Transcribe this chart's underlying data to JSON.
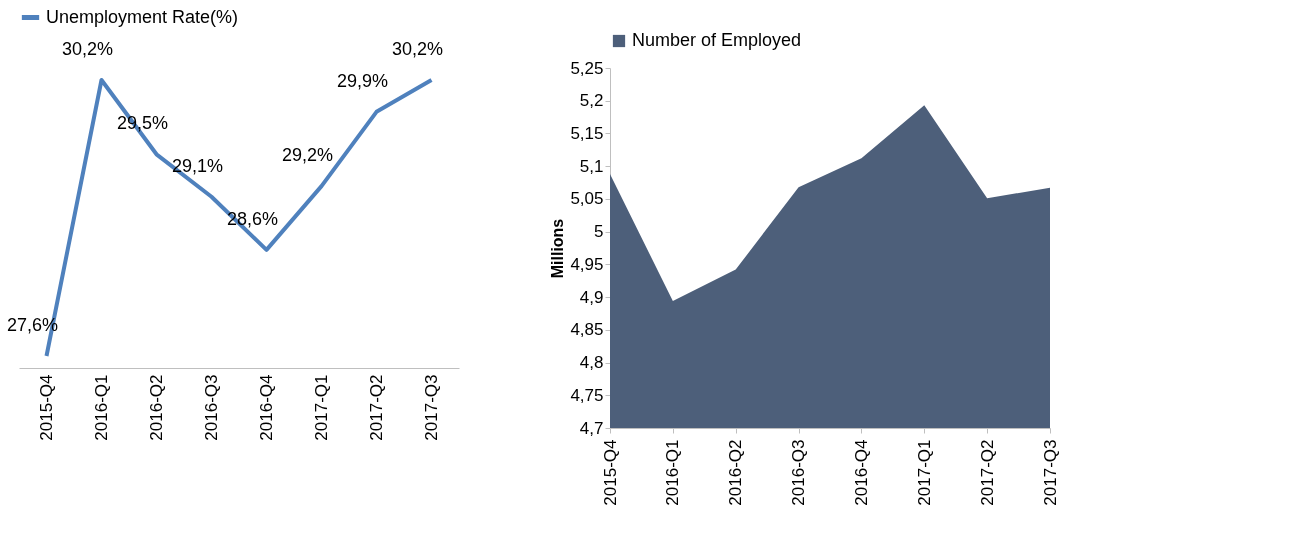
{
  "chart_data": [
    {
      "type": "line",
      "categories": [
        "2015-Q4",
        "2016-Q1",
        "2016-Q2",
        "2016-Q3",
        "2016-Q4",
        "2017-Q1",
        "2017-Q2",
        "2017-Q3"
      ],
      "series": [
        {
          "name": "Unemployment Rate(%)",
          "color": "#4f81bd",
          "values": [
            27.6,
            30.2,
            29.5,
            29.1,
            28.6,
            29.2,
            29.9,
            30.2
          ],
          "value_labels": [
            "27,6%",
            "30,2%",
            "29,5%",
            "29,1%",
            "28,6%",
            "29,2%",
            "29,9%",
            "30,2%"
          ]
        }
      ],
      "legend": "top",
      "grid": false,
      "tick_labels": "x"
    },
    {
      "type": "area",
      "categories": [
        "2015-Q4",
        "2016-Q1",
        "2016-Q2",
        "2016-Q3",
        "2016-Q4",
        "2017-Q1",
        "2017-Q2",
        "2017-Q3"
      ],
      "ylabel": "Millions",
      "series": [
        {
          "name": "Number of Employed",
          "color": "#4d5f7a",
          "values": [
            5.088,
            4.894,
            4.942,
            5.068,
            5.112,
            5.193,
            5.051,
            5.067
          ]
        }
      ],
      "ylim": [
        4.7,
        5.25
      ],
      "yticks": [
        {
          "value": 4.7,
          "label": "4,7"
        },
        {
          "value": 4.75,
          "label": "4,75"
        },
        {
          "value": 4.8,
          "label": "4,8"
        },
        {
          "value": 4.85,
          "label": "4,85"
        },
        {
          "value": 4.9,
          "label": "4,9"
        },
        {
          "value": 4.95,
          "label": "4,95"
        },
        {
          "value": 5.0,
          "label": "5"
        },
        {
          "value": 5.05,
          "label": "5,05"
        },
        {
          "value": 5.1,
          "label": "5,1"
        },
        {
          "value": 5.15,
          "label": "5,15"
        },
        {
          "value": 5.2,
          "label": "5,2"
        },
        {
          "value": 5.25,
          "label": "5,25"
        }
      ],
      "legend": "top",
      "grid": false
    }
  ]
}
